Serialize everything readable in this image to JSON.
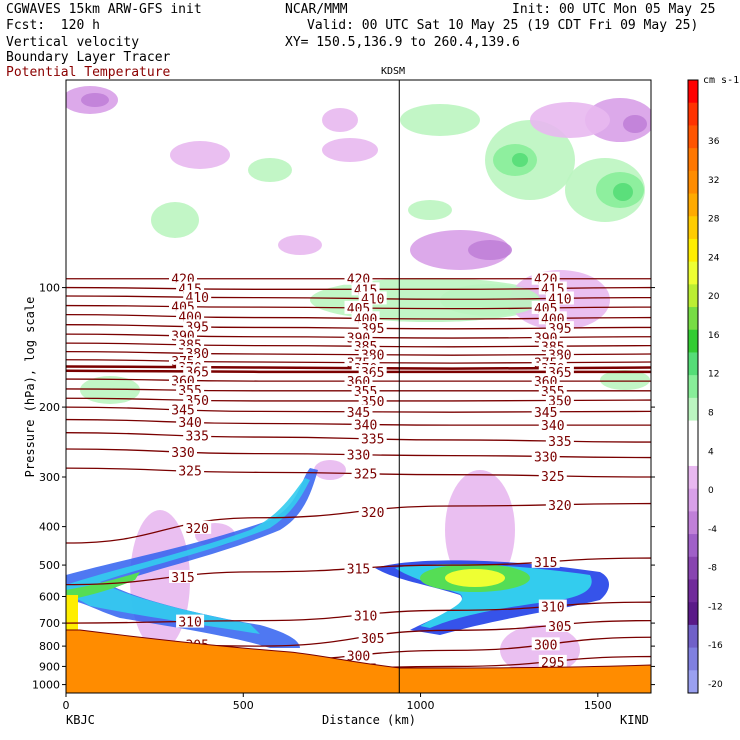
{
  "header": {
    "model_line": "CGWAVES 15km ARW-GFS init",
    "org": "NCAR/MMM",
    "init": "Init: 00 UTC Mon 05 May 25",
    "fcst": "Fcst:  120 h",
    "valid": "Valid: 00 UTC Sat 10 May 25 (19 CDT Fri 09 May 25)",
    "field1": "Vertical velocity",
    "field2": "Boundary Layer Tracer",
    "field3": "Potential Temperature",
    "xy": "XY= 150.5,136.9 to 260.4,139.6",
    "station_marker": "KDSM"
  },
  "colors": {
    "theta": "#7a0000",
    "terrain": "#ff8c00",
    "frame": "#000000"
  },
  "chart_data": {
    "type": "heatmap",
    "xlabel": "Distance (km)",
    "ylabel": "Pressure (hPa), log scale",
    "x_ticks": [
      "0",
      "500",
      "1000",
      "1500"
    ],
    "x_tick_values": [
      0,
      500,
      1000,
      1500
    ],
    "xlim": [
      0,
      1650
    ],
    "y_ticks": [
      "100",
      "200",
      "300",
      "400",
      "500",
      "600",
      "700",
      "800",
      "900",
      "1000"
    ],
    "y_tick_values": [
      100,
      200,
      300,
      400,
      500,
      600,
      700,
      800,
      900,
      1000
    ],
    "ylim": [
      30,
      1050
    ],
    "y_scale": "log",
    "left_endpoint": "KBJC",
    "right_endpoint": "KIND",
    "marker_x": 940,
    "colorbar": {
      "units": "cm s-1",
      "tick_labels": [
        "36",
        "32",
        "28",
        "24",
        "20",
        "16",
        "12",
        "8",
        "4",
        "0",
        "-4",
        "-8",
        "-12",
        "-16",
        "-20"
      ],
      "colors": [
        "#ff0000",
        "#ff3300",
        "#ff5500",
        "#ff7700",
        "#ff8c00",
        "#ffaa00",
        "#ffcc00",
        "#ffee00",
        "#eeff33",
        "#bbee33",
        "#77dd44",
        "#33cc33",
        "#55dd77",
        "#88ee99",
        "#bbf5c0",
        "#ffffff",
        "#ffffff",
        "#e8b8f0",
        "#d8a0e8",
        "#c080d8",
        "#a060c8",
        "#8844b0",
        "#702a9a",
        "#5a1a88",
        "#7060c8",
        "#8080e0",
        "#9aa0f0"
      ]
    },
    "theta_contours": [
      {
        "label": "420",
        "p": [
          95,
          95,
          95,
          95
        ]
      },
      {
        "label": "415",
        "p": [
          100,
          101,
          101,
          100
        ]
      },
      {
        "label": "410",
        "p": [
          105,
          106,
          107,
          106
        ]
      },
      {
        "label": "405",
        "p": [
          111,
          112,
          113,
          112
        ]
      },
      {
        "label": "400",
        "p": [
          117,
          119,
          120,
          119
        ]
      },
      {
        "label": "395",
        "p": [
          124,
          126,
          127,
          126
        ]
      },
      {
        "label": "390",
        "p": [
          131,
          133,
          134,
          133
        ]
      },
      {
        "label": "385",
        "p": [
          138,
          140,
          141,
          140
        ]
      },
      {
        "label": "380",
        "p": [
          145,
          147,
          148,
          147
        ]
      },
      {
        "label": "375",
        "p": [
          152,
          154,
          155,
          154
        ]
      },
      {
        "label": "370",
        "p": [
          158,
          159,
          160,
          159
        ]
      },
      {
        "label": "365",
        "p": [
          162,
          163,
          163,
          163
        ]
      },
      {
        "label": "360",
        "p": [
          170,
          172,
          172,
          172
        ]
      },
      {
        "label": "355",
        "p": [
          180,
          182,
          182,
          182
        ]
      },
      {
        "label": "350",
        "p": [
          190,
          193,
          193,
          192
        ]
      },
      {
        "label": "345",
        "p": [
          200,
          205,
          206,
          205
        ]
      },
      {
        "label": "340",
        "p": [
          215,
          220,
          222,
          222
        ]
      },
      {
        "label": "335",
        "p": [
          232,
          238,
          242,
          245
        ]
      },
      {
        "label": "330",
        "p": [
          255,
          262,
          265,
          268
        ]
      },
      {
        "label": "325",
        "p": [
          285,
          292,
          296,
          300
        ]
      },
      {
        "label": "320",
        "p": [
          440,
          380,
          355,
          350
        ]
      },
      {
        "label": "315",
        "p": [
          560,
          520,
          500,
          480
        ]
      },
      {
        "label": "310",
        "p": [
          700,
          690,
          650,
          620
        ]
      },
      {
        "label": "305",
        "p": [
          780,
          800,
          730,
          690
        ]
      },
      {
        "label": "300",
        "p": [
          830,
          870,
          820,
          760
        ]
      },
      {
        "label": "295",
        "p": [
          880,
          920,
          900,
          850
        ]
      }
    ],
    "tracer_region_label": "Boundary Layer Tracer",
    "updraft_max": 20,
    "downdraft_min": -12
  }
}
